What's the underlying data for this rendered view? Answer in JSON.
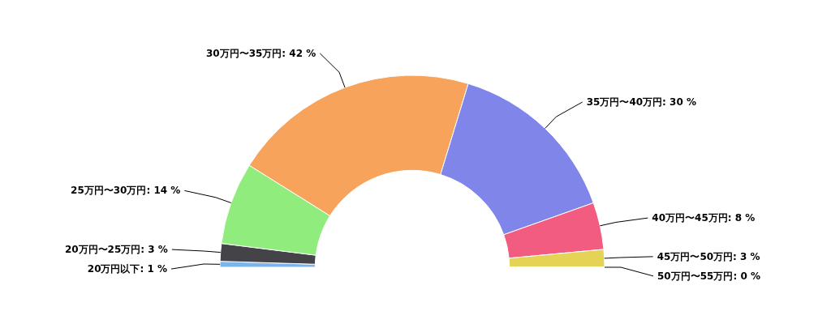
{
  "chart_data": {
    "type": "donut",
    "categories": [
      "20万円以下",
      "20万円〜25万円",
      "25万円〜30万円",
      "30万円〜35万円",
      "35万円〜40万円",
      "40万円〜45万円",
      "45万円〜50万円",
      "50万円〜55万円"
    ],
    "values": [
      1,
      3,
      14,
      42,
      30,
      8,
      3,
      0
    ],
    "value_labels": [
      "1 %",
      "3 %",
      "14 %",
      "42 %",
      "30 %",
      "8 %",
      "3 %",
      "0 %"
    ],
    "colors": [
      "#7cb5ec",
      "#434348",
      "#90ed7d",
      "#f7a35c",
      "#8085e9",
      "#f15c80",
      "#e4d354",
      "#2b908f"
    ]
  }
}
